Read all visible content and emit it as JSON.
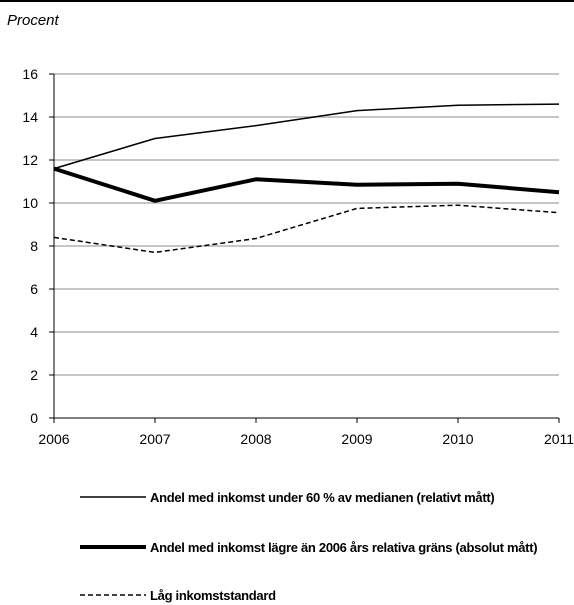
{
  "unit_label": "Procent",
  "chart_data": {
    "type": "line",
    "x": [
      2006,
      2007,
      2008,
      2009,
      2010,
      2011
    ],
    "xticklabels": [
      "2006",
      "2007",
      "2008",
      "2009",
      "2010",
      "2011"
    ],
    "ylim": [
      0,
      16
    ],
    "yticks": [
      0,
      2,
      4,
      6,
      8,
      10,
      12,
      14,
      16
    ],
    "grid": true,
    "legend_position": "bottom",
    "series": [
      {
        "name": "Andel med inkomst under 60 % av medianen (relativt mått)",
        "values": [
          11.6,
          13.0,
          13.6,
          14.3,
          14.55,
          14.6
        ],
        "style": "thin-solid",
        "color": "#000000"
      },
      {
        "name": "Andel med inkomst lägre än 2006 års relativa gräns (absolut mått)",
        "values": [
          11.6,
          10.1,
          11.1,
          10.85,
          10.9,
          10.5
        ],
        "style": "thick-solid",
        "color": "#000000"
      },
      {
        "name": "Låg inkomststandard",
        "values": [
          8.4,
          7.7,
          8.35,
          9.75,
          9.9,
          9.55
        ],
        "style": "dashed",
        "color": "#000000"
      }
    ]
  }
}
